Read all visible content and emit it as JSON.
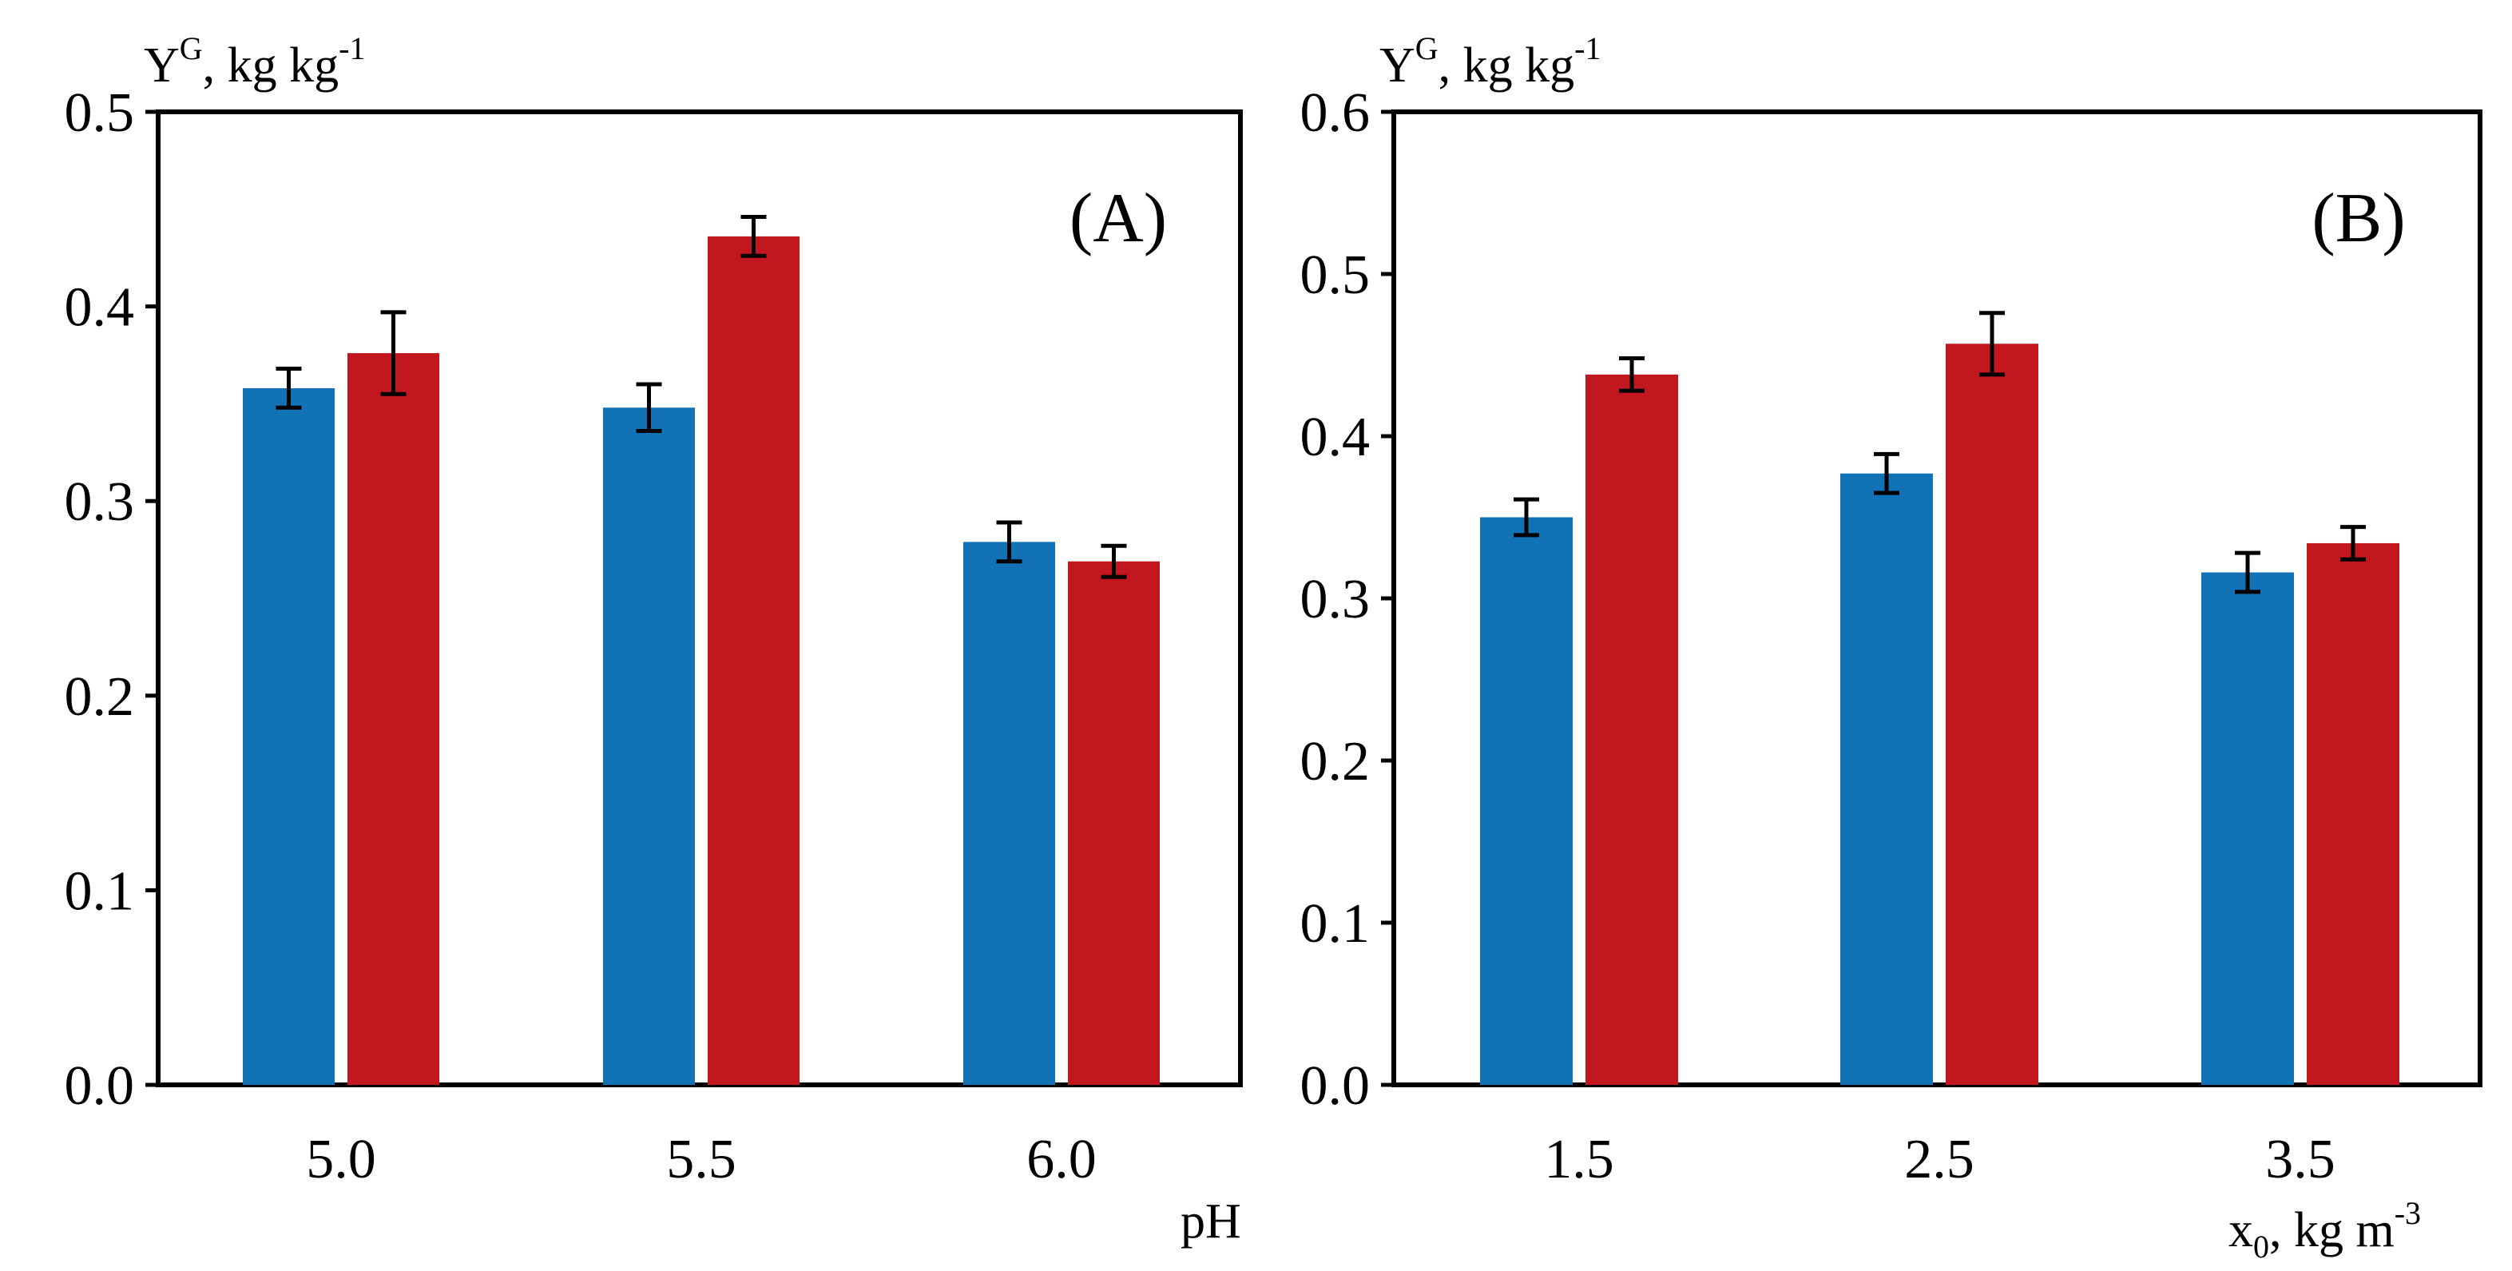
{
  "chart_data": [
    {
      "type": "bar",
      "panel_label": "(A)",
      "ylabel": {
        "base": "Y",
        "sup": "G",
        "rest": ", kg kg",
        "sup2": "-1"
      },
      "xlabel": {
        "text": "pH"
      },
      "categories": [
        "5.0",
        "5.5",
        "6.0"
      ],
      "ylim": [
        0,
        0.5
      ],
      "yticks": [
        0.0,
        0.1,
        0.2,
        0.3,
        0.4,
        0.5
      ],
      "ytick_labels": [
        "0.0",
        "0.1",
        "0.2",
        "0.3",
        "0.4",
        "0.5"
      ],
      "series": [
        {
          "name": "series 1",
          "color": "#1172b6",
          "values": [
            0.358,
            0.348,
            0.279
          ],
          "errors": [
            0.01,
            0.012,
            0.01
          ]
        },
        {
          "name": "series 2",
          "color": "#c2171f",
          "values": [
            0.376,
            0.436,
            0.269
          ],
          "errors": [
            0.021,
            0.01,
            0.008
          ]
        }
      ]
    },
    {
      "type": "bar",
      "panel_label": "(B)",
      "ylabel": {
        "base": "Y",
        "sup": "G",
        "rest": ", kg kg",
        "sup2": "-1"
      },
      "xlabel": {
        "base": "x",
        "sub": "0",
        "rest": ", kg m",
        "sup": "-3"
      },
      "categories": [
        "1.5",
        "2.5",
        "3.5"
      ],
      "ylim": [
        0,
        0.6
      ],
      "yticks": [
        0.0,
        0.1,
        0.2,
        0.3,
        0.4,
        0.5,
        0.6
      ],
      "ytick_labels": [
        "0.0",
        "0.1",
        "0.2",
        "0.3",
        "0.4",
        "0.5",
        "0.6"
      ],
      "series": [
        {
          "name": "series 1",
          "color": "#1172b6",
          "values": [
            0.35,
            0.377,
            0.316
          ],
          "errors": [
            0.011,
            0.012,
            0.012
          ]
        },
        {
          "name": "series 2",
          "color": "#c2171f",
          "values": [
            0.438,
            0.457,
            0.334
          ],
          "errors": [
            0.01,
            0.019,
            0.01
          ]
        }
      ]
    }
  ]
}
